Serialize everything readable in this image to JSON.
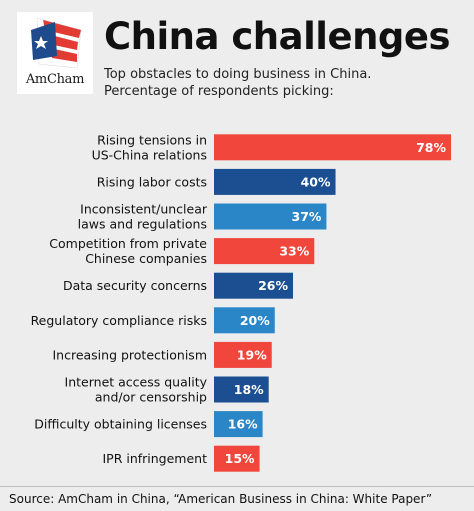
{
  "header": {
    "logo_text": "AmCham",
    "title": "China challenges",
    "subtitle_lines": [
      "Top obstacles to doing business in China.",
      "Percentage of respondents picking:"
    ]
  },
  "chart_data": {
    "type": "bar",
    "orientation": "horizontal",
    "title": "China challenges",
    "categories": [
      [
        "Rising tensions in",
        "US-China relations"
      ],
      [
        "Rising labor costs"
      ],
      [
        "Inconsistent/unclear",
        "laws and regulations"
      ],
      [
        "Competition from private",
        "Chinese companies"
      ],
      [
        "Data security concerns"
      ],
      [
        "Regulatory compliance risks"
      ],
      [
        "Increasing protectionism"
      ],
      [
        "Internet access quality",
        "and/or censorship"
      ],
      [
        "Difficulty obtaining licenses"
      ],
      [
        "IPR infringement"
      ]
    ],
    "values": [
      78,
      40,
      37,
      33,
      26,
      20,
      19,
      18,
      16,
      15
    ],
    "value_labels": [
      "78%",
      "40%",
      "37%",
      "33%",
      "26%",
      "20%",
      "19%",
      "18%",
      "16%",
      "15%"
    ],
    "bar_colors": [
      "#f0463c",
      "#1b4f91",
      "#2b86c8",
      "#f0463c",
      "#1b4f91",
      "#2b86c8",
      "#f0463c",
      "#1b4f91",
      "#2b86c8",
      "#f0463c"
    ],
    "xlim": [
      0,
      78
    ],
    "grid": false,
    "legend": "none"
  },
  "footer": {
    "source": "Source: AmCham in China, “American Business in China: White Paper”"
  },
  "colors": {
    "background": "#ededed",
    "red": "#f0463c",
    "navy": "#1b4f91",
    "blue": "#2b86c8"
  }
}
